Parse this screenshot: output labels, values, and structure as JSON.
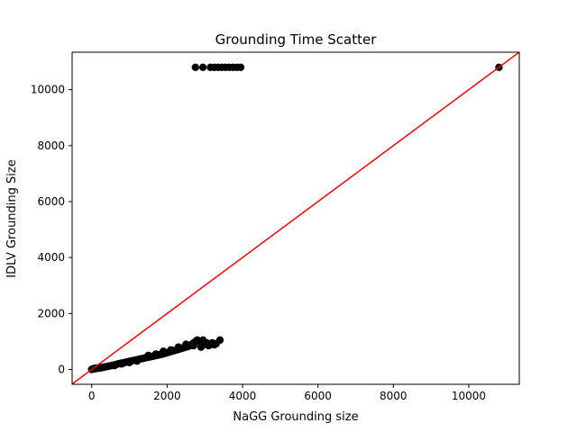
{
  "chart_data": {
    "type": "scatter",
    "title": "Grounding Time Scatter",
    "xlabel": "NaGG Grounding size",
    "ylabel": "IDLV Grounding Size",
    "xlim": [
      -520,
      11340
    ],
    "ylim": [
      -530,
      11340
    ],
    "xticks": [
      0,
      2000,
      4000,
      6000,
      8000,
      10000
    ],
    "yticks": [
      0,
      2000,
      4000,
      6000,
      8000,
      10000
    ],
    "grid": false,
    "marker_color": "#000000",
    "line_color": "#ff0000",
    "reference_line": {
      "type": "y=x"
    },
    "points": [
      {
        "x": 0,
        "y": 0
      },
      {
        "x": 20,
        "y": 15
      },
      {
        "x": 40,
        "y": 25
      },
      {
        "x": 60,
        "y": 20
      },
      {
        "x": 80,
        "y": 40
      },
      {
        "x": 100,
        "y": 30
      },
      {
        "x": 120,
        "y": 50
      },
      {
        "x": 150,
        "y": 40
      },
      {
        "x": 180,
        "y": 60
      },
      {
        "x": 200,
        "y": 50
      },
      {
        "x": 230,
        "y": 70
      },
      {
        "x": 260,
        "y": 60
      },
      {
        "x": 300,
        "y": 80
      },
      {
        "x": 340,
        "y": 90
      },
      {
        "x": 380,
        "y": 100
      },
      {
        "x": 420,
        "y": 110
      },
      {
        "x": 460,
        "y": 120
      },
      {
        "x": 500,
        "y": 130
      },
      {
        "x": 550,
        "y": 150
      },
      {
        "x": 600,
        "y": 160
      },
      {
        "x": 650,
        "y": 180
      },
      {
        "x": 700,
        "y": 200
      },
      {
        "x": 750,
        "y": 210
      },
      {
        "x": 800,
        "y": 230
      },
      {
        "x": 850,
        "y": 240
      },
      {
        "x": 900,
        "y": 260
      },
      {
        "x": 950,
        "y": 270
      },
      {
        "x": 1000,
        "y": 290
      },
      {
        "x": 1050,
        "y": 300
      },
      {
        "x": 1100,
        "y": 320
      },
      {
        "x": 1150,
        "y": 330
      },
      {
        "x": 1200,
        "y": 350
      },
      {
        "x": 1250,
        "y": 360
      },
      {
        "x": 1300,
        "y": 380
      },
      {
        "x": 1350,
        "y": 390
      },
      {
        "x": 1400,
        "y": 410
      },
      {
        "x": 1450,
        "y": 420
      },
      {
        "x": 1500,
        "y": 440
      },
      {
        "x": 1550,
        "y": 450
      },
      {
        "x": 1600,
        "y": 470
      },
      {
        "x": 1650,
        "y": 480
      },
      {
        "x": 1700,
        "y": 500
      },
      {
        "x": 1750,
        "y": 510
      },
      {
        "x": 1800,
        "y": 530
      },
      {
        "x": 1850,
        "y": 540
      },
      {
        "x": 1900,
        "y": 560
      },
      {
        "x": 1950,
        "y": 580
      },
      {
        "x": 2000,
        "y": 600
      },
      {
        "x": 2050,
        "y": 620
      },
      {
        "x": 2100,
        "y": 640
      },
      {
        "x": 2150,
        "y": 660
      },
      {
        "x": 2200,
        "y": 680
      },
      {
        "x": 2250,
        "y": 700
      },
      {
        "x": 2300,
        "y": 720
      },
      {
        "x": 2350,
        "y": 740
      },
      {
        "x": 2400,
        "y": 760
      },
      {
        "x": 2450,
        "y": 780
      },
      {
        "x": 2500,
        "y": 800
      },
      {
        "x": 2550,
        "y": 820
      },
      {
        "x": 2600,
        "y": 850
      },
      {
        "x": 2650,
        "y": 900
      },
      {
        "x": 2700,
        "y": 950
      },
      {
        "x": 2750,
        "y": 1000
      },
      {
        "x": 2800,
        "y": 1050
      },
      {
        "x": 2850,
        "y": 1000
      },
      {
        "x": 2900,
        "y": 950
      },
      {
        "x": 2950,
        "y": 1050
      },
      {
        "x": 3000,
        "y": 900
      },
      {
        "x": 3050,
        "y": 950
      },
      {
        "x": 3100,
        "y": 850
      },
      {
        "x": 3150,
        "y": 900
      },
      {
        "x": 3200,
        "y": 950
      },
      {
        "x": 3250,
        "y": 880
      },
      {
        "x": 3300,
        "y": 920
      },
      {
        "x": 3400,
        "y": 1050
      },
      {
        "x": 1500,
        "y": 500
      },
      {
        "x": 1700,
        "y": 550
      },
      {
        "x": 1900,
        "y": 650
      },
      {
        "x": 2100,
        "y": 700
      },
      {
        "x": 2300,
        "y": 800
      },
      {
        "x": 2500,
        "y": 900
      },
      {
        "x": 2700,
        "y": 850
      },
      {
        "x": 2900,
        "y": 800
      },
      {
        "x": 1000,
        "y": 250
      },
      {
        "x": 1200,
        "y": 300
      },
      {
        "x": 800,
        "y": 200
      },
      {
        "x": 600,
        "y": 140
      },
      {
        "x": 2750,
        "y": 10800
      },
      {
        "x": 2950,
        "y": 10800
      },
      {
        "x": 3150,
        "y": 10800
      },
      {
        "x": 3250,
        "y": 10800
      },
      {
        "x": 3350,
        "y": 10800
      },
      {
        "x": 3450,
        "y": 10800
      },
      {
        "x": 3550,
        "y": 10800
      },
      {
        "x": 3650,
        "y": 10800
      },
      {
        "x": 3750,
        "y": 10800
      },
      {
        "x": 3850,
        "y": 10800
      },
      {
        "x": 3950,
        "y": 10800
      },
      {
        "x": 10800,
        "y": 10800
      }
    ]
  }
}
